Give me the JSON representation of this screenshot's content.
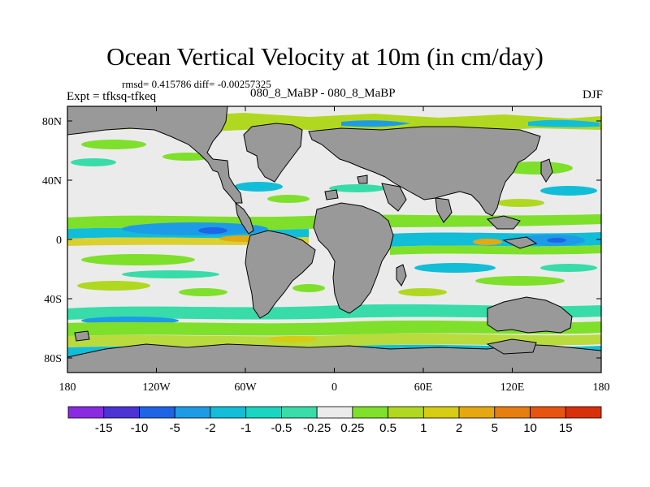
{
  "header": {
    "title": "Ocean Vertical Velocity at 10m (in cm/day)",
    "stats": "rmsd= 0.415786 diff= -0.00257325",
    "expt": "Expt = tfksq-tfkeq",
    "subtitle": "080_8_MaBP - 080_8_MaBP",
    "season": "DJF"
  },
  "map": {
    "lat_labels": [
      "80N",
      "40N",
      "0",
      "40S",
      "80S"
    ],
    "lon_labels": [
      "180",
      "120W",
      "60W",
      "0",
      "60E",
      "120E",
      "180"
    ],
    "colors": {
      "land": "#999999",
      "neutral": "#ebebeb",
      "frame": "#000000"
    }
  },
  "colorbar": {
    "labels": [
      "-15",
      "-10",
      "-5",
      "-2",
      "-1",
      "-0.5",
      "-0.25",
      "0.25",
      "0.5",
      "1",
      "2",
      "5",
      "10",
      "15"
    ],
    "colors": [
      "#8a2be2",
      "#4b33d6",
      "#1e64e6",
      "#1e9be6",
      "#12bdd8",
      "#18d6c2",
      "#38dca8",
      "#ebebeb",
      "#7ee02a",
      "#b0d820",
      "#d6cc12",
      "#e6a810",
      "#e67e10",
      "#e6540f",
      "#d9300c"
    ]
  }
}
